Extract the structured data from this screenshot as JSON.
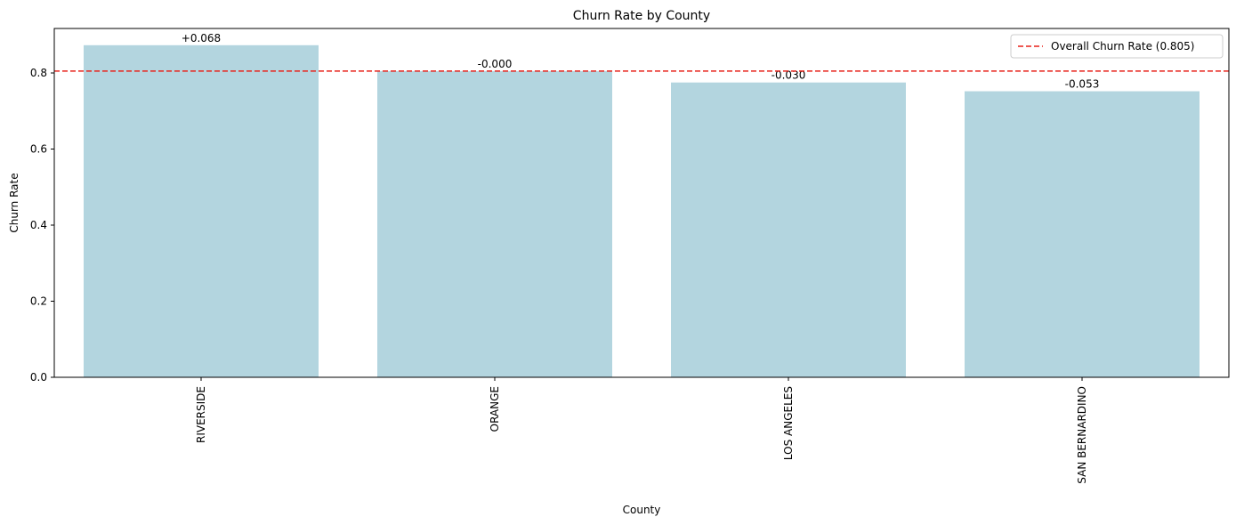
{
  "chart_data": {
    "type": "bar",
    "title": "Churn Rate by County",
    "xlabel": "County",
    "ylabel": "Churn Rate",
    "categories": [
      "RIVERSIDE",
      "ORANGE",
      "LOS ANGELES",
      "SAN BERNARDINO"
    ],
    "values": [
      0.873,
      0.805,
      0.775,
      0.752
    ],
    "bar_labels": [
      "+0.068",
      "-0.000",
      "-0.030",
      "-0.053"
    ],
    "ylim": [
      0,
      0.917
    ],
    "yticks": [
      "0.0",
      "0.2",
      "0.4",
      "0.6",
      "0.8"
    ],
    "ytick_values": [
      0,
      0.2,
      0.4,
      0.6,
      0.8
    ],
    "reference_line": {
      "value": 0.805,
      "label": "Overall Churn Rate (0.805)",
      "style": "dashed"
    },
    "legend_position": "upper-right",
    "grid": false,
    "colors": {
      "bar": "#b3d5df",
      "reference_line": "#e8221a",
      "axis": "#000000"
    }
  }
}
